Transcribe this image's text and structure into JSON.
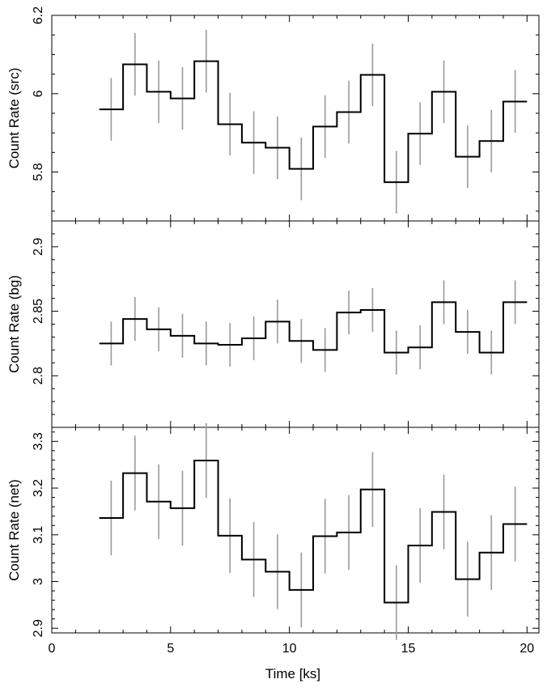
{
  "chart_data": [
    {
      "type": "line",
      "style": "step",
      "ylabel": "Count Rate (src)",
      "xlim": [
        0,
        20.5
      ],
      "ylim": [
        5.675,
        6.2
      ],
      "yticks_major": [
        5.8,
        6,
        6.2
      ],
      "ytick_labels": [
        "5.8",
        "6",
        "6.2"
      ],
      "ytick_minor_step": 0.05,
      "x": [
        2.5,
        3.5,
        4.5,
        5.5,
        6.5,
        7.5,
        8.5,
        9.5,
        10.5,
        11.5,
        12.5,
        13.5,
        14.5,
        15.5,
        16.5,
        17.5,
        18.5,
        19.5
      ],
      "values": [
        5.96,
        6.075,
        6.005,
        5.988,
        6.083,
        5.922,
        5.875,
        5.862,
        5.808,
        5.916,
        5.953,
        6.048,
        5.774,
        5.898,
        6.005,
        5.839,
        5.879,
        5.98
      ],
      "errors": [
        0.08,
        0.08,
        0.08,
        0.08,
        0.08,
        0.08,
        0.08,
        0.08,
        0.08,
        0.08,
        0.08,
        0.08,
        0.08,
        0.08,
        0.08,
        0.08,
        0.08,
        0.08
      ]
    },
    {
      "type": "line",
      "style": "step",
      "ylabel": "Count Rate (bg)",
      "xlim": [
        0,
        20.5
      ],
      "ylim": [
        2.76,
        2.92
      ],
      "yticks_major": [
        2.8,
        2.85,
        2.9
      ],
      "ytick_labels": [
        "2.8",
        "2.85",
        "2.9"
      ],
      "ytick_minor_step": 0.01,
      "x": [
        2.5,
        3.5,
        4.5,
        5.5,
        6.5,
        7.5,
        8.5,
        9.5,
        10.5,
        11.5,
        12.5,
        13.5,
        14.5,
        15.5,
        16.5,
        17.5,
        18.5,
        19.5
      ],
      "values": [
        2.825,
        2.844,
        2.836,
        2.831,
        2.825,
        2.824,
        2.829,
        2.842,
        2.827,
        2.82,
        2.849,
        2.851,
        2.818,
        2.822,
        2.857,
        2.834,
        2.818,
        2.857
      ],
      "errors": [
        0.017,
        0.017,
        0.017,
        0.017,
        0.017,
        0.017,
        0.017,
        0.017,
        0.017,
        0.017,
        0.017,
        0.017,
        0.017,
        0.017,
        0.017,
        0.017,
        0.017,
        0.017
      ]
    },
    {
      "type": "line",
      "style": "step",
      "ylabel": "Count Rate (net)",
      "xlabel": "Time [ks]",
      "xlim": [
        0,
        20.5
      ],
      "xticks_major": [
        0,
        5,
        10,
        15,
        20
      ],
      "xtick_labels": [
        "0",
        "5",
        "10",
        "15",
        "20"
      ],
      "xtick_minor_step": 1,
      "ylim": [
        2.89,
        3.33
      ],
      "yticks_major": [
        2.9,
        3,
        3.1,
        3.2,
        3.3
      ],
      "ytick_labels": [
        "2.9",
        "3",
        "3.1",
        "3.2",
        "3.3"
      ],
      "ytick_minor_step": 0.02,
      "x": [
        2.5,
        3.5,
        4.5,
        5.5,
        6.5,
        7.5,
        8.5,
        9.5,
        10.5,
        11.5,
        12.5,
        13.5,
        14.5,
        15.5,
        16.5,
        17.5,
        18.5,
        19.5
      ],
      "values": [
        3.136,
        3.232,
        3.171,
        3.157,
        3.259,
        3.098,
        3.047,
        3.021,
        2.982,
        3.097,
        3.105,
        3.197,
        2.955,
        3.077,
        3.149,
        3.005,
        3.062,
        3.123
      ],
      "errors": [
        0.08,
        0.08,
        0.08,
        0.08,
        0.08,
        0.08,
        0.08,
        0.08,
        0.08,
        0.08,
        0.08,
        0.08,
        0.08,
        0.08,
        0.08,
        0.08,
        0.08,
        0.08
      ]
    }
  ],
  "colors": {
    "step_line": "#000000",
    "error_bar": "#9a9a9a",
    "axes": "#000000"
  }
}
